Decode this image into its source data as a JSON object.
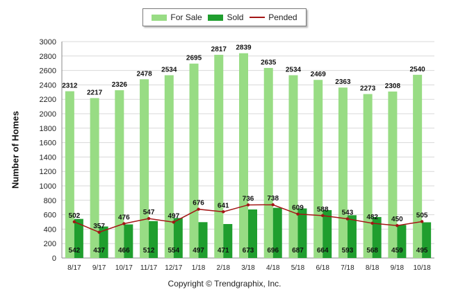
{
  "legend": [
    {
      "name": "For Sale",
      "color": "#98dc84",
      "kind": "bar"
    },
    {
      "name": "Sold",
      "color": "#1f9e2e",
      "kind": "bar"
    },
    {
      "name": "Pended",
      "color": "#a31515",
      "kind": "line"
    }
  ],
  "copyright": "Copyright © Trendgraphix, Inc.",
  "chart_data": {
    "type": "bar",
    "ylabel": "Number of Homes",
    "xlabel": "",
    "ylim": [
      0,
      3000
    ],
    "yticks": [
      0,
      200,
      400,
      600,
      800,
      1000,
      1200,
      1400,
      1600,
      1800,
      2000,
      2200,
      2400,
      2600,
      2800,
      3000
    ],
    "grid": true,
    "legend_position": "top-center",
    "categories": [
      "8/17",
      "9/17",
      "10/17",
      "11/17",
      "12/17",
      "1/18",
      "2/18",
      "3/18",
      "4/18",
      "5/18",
      "6/18",
      "7/18",
      "8/18",
      "9/18",
      "10/18"
    ],
    "series": [
      {
        "name": "For Sale",
        "type": "bar",
        "color": "#98dc84",
        "values": [
          2312,
          2217,
          2326,
          2478,
          2534,
          2695,
          2817,
          2839,
          2635,
          2534,
          2469,
          2363,
          2273,
          2308,
          2540
        ]
      },
      {
        "name": "Sold",
        "type": "bar",
        "color": "#1f9e2e",
        "values": [
          542,
          437,
          466,
          512,
          554,
          497,
          471,
          673,
          696,
          687,
          664,
          593,
          568,
          459,
          495
        ]
      },
      {
        "name": "Pended",
        "type": "line",
        "color": "#a31515",
        "values": [
          502,
          357,
          476,
          547,
          497,
          676,
          641,
          736,
          738,
          609,
          588,
          543,
          482,
          450,
          505
        ]
      }
    ]
  }
}
